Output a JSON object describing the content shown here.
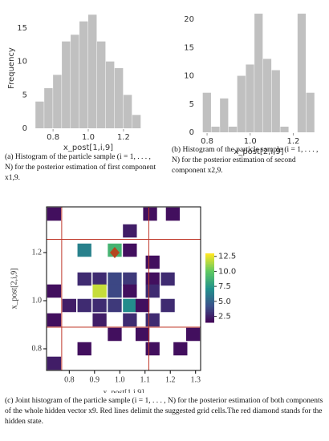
{
  "chart_data": [
    {
      "type": "histogram",
      "xlabel": "x_post[1,i,9]",
      "ylabel": "Frequency",
      "color": "#c0c0c0",
      "bins": [
        0.7,
        0.75,
        0.8,
        0.85,
        0.9,
        0.95,
        1.0,
        1.05,
        1.1,
        1.15,
        1.2,
        1.25,
        1.3
      ],
      "counts": [
        4,
        6,
        8,
        13,
        14,
        16,
        17,
        13,
        10,
        9,
        5,
        2
      ],
      "xlim": [
        0.69,
        1.31
      ],
      "xticks": [
        0.8,
        {
          "value": 1,
          "label": "1.0"
        },
        1.2
      ],
      "ylim": [
        0,
        18
      ],
      "yticks": [
        0,
        5,
        10,
        15
      ]
    },
    {
      "type": "histogram",
      "xlabel": "x_post[2,i,9]",
      "color": "#c0c0c0",
      "bins": [
        0.78,
        0.82,
        0.86,
        0.9,
        0.94,
        0.98,
        1.02,
        1.06,
        1.1,
        1.14,
        1.18,
        1.22,
        1.26,
        1.3
      ],
      "counts": [
        7,
        1,
        6,
        1,
        10,
        12,
        21,
        13,
        11,
        1,
        0,
        21,
        7
      ],
      "xlim": [
        0.77,
        1.31
      ],
      "xticks": [
        0.8,
        {
          "value": 1,
          "label": "1.0"
        },
        1.2
      ],
      "ylim": [
        0,
        22
      ],
      "yticks": [
        0,
        5,
        10,
        15,
        20
      ]
    },
    {
      "type": "heatmap",
      "xlabel": "x_post[1,i,9]",
      "ylabel": "x_post[2,i,9]",
      "cell_size": 0.055,
      "x": [
        0.74,
        1.04,
        1.12,
        1.21,
        0.86,
        0.98,
        1.04,
        1.13,
        1.19,
        1.13,
        0.86,
        0.92,
        0.98,
        1.04,
        0.74,
        0.92,
        0.98,
        1.04,
        1.13,
        0.8,
        0.86,
        0.92,
        0.98,
        1.04,
        1.09,
        1.19,
        0.74,
        0.92,
        1.04,
        1.13,
        0.98,
        1.09,
        1.29,
        0.86,
        1.13,
        1.24,
        0.74
      ],
      "y": [
        1.36,
        1.29,
        1.36,
        1.36,
        1.21,
        1.21,
        1.21,
        1.16,
        1.09,
        1.09,
        1.09,
        1.09,
        1.09,
        1.09,
        1.04,
        1.04,
        1.04,
        1.04,
        1.04,
        0.98,
        0.98,
        0.98,
        0.98,
        0.98,
        0.98,
        0.98,
        0.92,
        0.92,
        0.92,
        0.92,
        0.86,
        0.86,
        0.86,
        0.8,
        0.8,
        0.8,
        0.74
      ],
      "values": [
        2,
        2.5,
        2,
        2,
        6.5,
        9,
        2,
        2,
        3,
        2,
        3,
        3,
        4,
        3.5,
        2,
        12,
        4,
        2,
        3,
        2.5,
        3,
        3,
        3.5,
        7,
        2,
        3,
        2,
        2.5,
        3,
        3,
        2,
        2,
        2,
        2,
        2,
        2,
        2.5
      ],
      "clim": [
        1.5,
        13
      ],
      "cticks": [
        2.5,
        {
          "value": 5,
          "label": "5.0"
        },
        7.5,
        {
          "value": 10,
          "label": "10.0"
        },
        12.5
      ],
      "xlim": [
        0.71,
        1.32
      ],
      "xticks": [
        0.8,
        0.9,
        {
          "value": 1,
          "label": "1.0"
        },
        1.1,
        1.2,
        1.3
      ],
      "ylim": [
        0.71,
        1.39
      ],
      "yticks": [
        0.8,
        {
          "value": 1,
          "label": "1.0"
        },
        1.2
      ],
      "vlines": [
        0.77,
        1.115
      ],
      "hlines": [
        0.89,
        1.255
      ],
      "line_color": "#c0392b",
      "marker": {
        "x": 0.98,
        "y": 1.2,
        "color": "#b5461f"
      }
    }
  ],
  "captions": [
    "(a) Histogram of the particle sample (i = 1, . . . , N) for the posterior estimation of first component x1,9.",
    "(b) Histogram of the particle sample (i = 1, . . . , N) for the posterior estimation of second component x2,9.",
    "(c) Joint histogram of the particle sample (i = 1, . . . , N) for the posterior estimation of both components of the whole hidden vector x9. Red lines delimit the suggested grid cells.The red diamond stands for the hidden state."
  ]
}
